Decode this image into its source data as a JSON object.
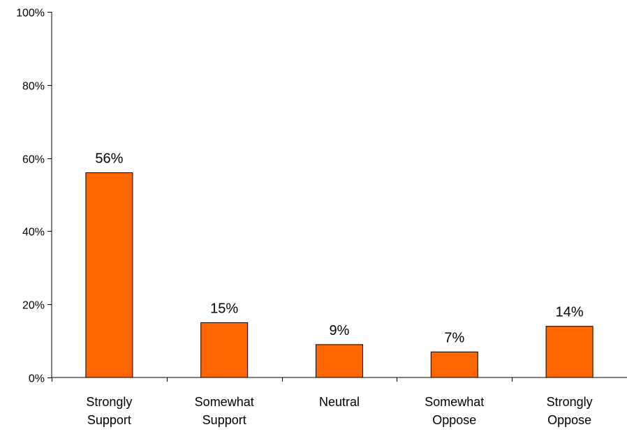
{
  "chart_data": {
    "type": "bar",
    "categories": [
      [
        "Strongly",
        "Support"
      ],
      [
        "Somewhat",
        "Support"
      ],
      [
        "Neutral"
      ],
      [
        "Somewhat",
        "Oppose"
      ],
      [
        "Strongly",
        "Oppose"
      ]
    ],
    "values": [
      56,
      15,
      9,
      7,
      14
    ],
    "data_labels": [
      "56%",
      "15%",
      "9%",
      "7%",
      "14%"
    ],
    "ylim": [
      0,
      100
    ],
    "yticks": [
      0,
      20,
      40,
      60,
      80,
      100
    ],
    "ytick_labels": [
      "0%",
      "20%",
      "40%",
      "60%",
      "80%",
      "100%"
    ],
    "title": "",
    "xlabel": "",
    "ylabel": "",
    "grid": false,
    "legend": "none",
    "colors": {
      "bar_fill": "#FF6600",
      "bar_stroke": "#000000",
      "axis": "#000000"
    }
  }
}
